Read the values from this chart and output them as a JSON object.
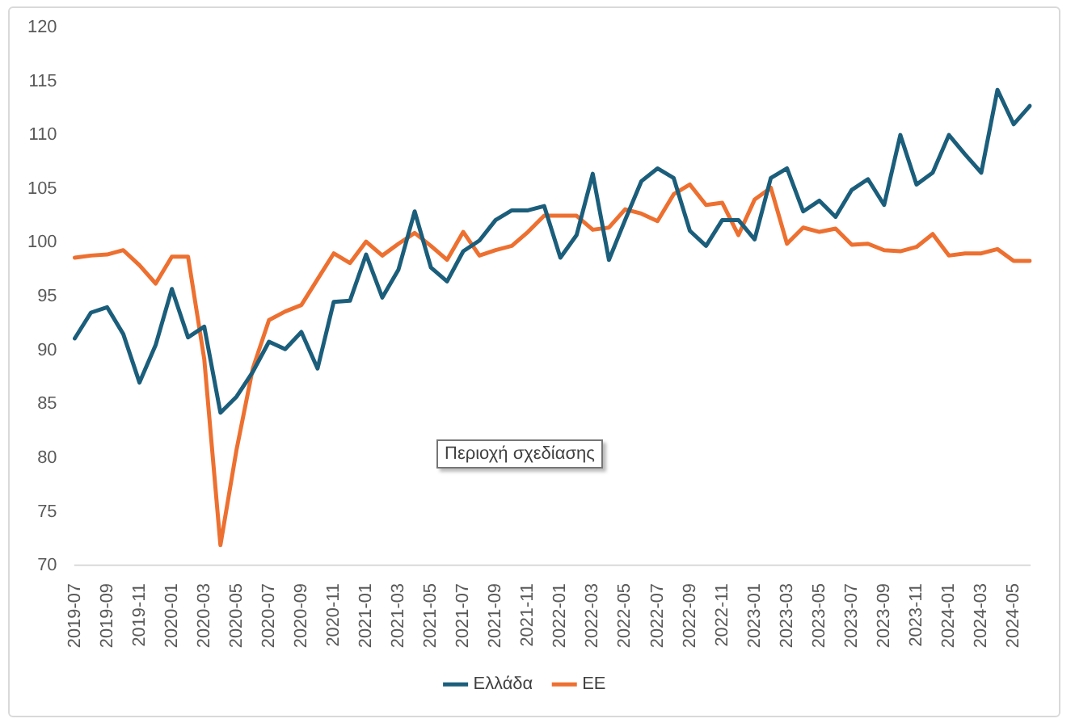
{
  "chart_data": {
    "type": "line",
    "categories": [
      "2019-07",
      null,
      "2019-09",
      null,
      "2019-11",
      null,
      "2020-01",
      null,
      "2020-03",
      null,
      "2020-05",
      null,
      "2020-07",
      null,
      "2020-09",
      null,
      "2020-11",
      null,
      "2021-01",
      null,
      "2021-03",
      null,
      "2021-05",
      null,
      "2021-07",
      null,
      "2021-09",
      null,
      "2021-11",
      null,
      "2022-01",
      null,
      "2022-03",
      null,
      "2022-05",
      null,
      "2022-07",
      null,
      "2022-09",
      null,
      "2022-11",
      null,
      "2023-01",
      null,
      "2023-03",
      null,
      "2023-05",
      null,
      "2023-07",
      null,
      "2023-09",
      null,
      "2023-11",
      null,
      "2024-01",
      null,
      "2024-03",
      null,
      "2024-05",
      null
    ],
    "series": [
      {
        "name": "Ελλάδα",
        "color": "#1b5e7b",
        "values": [
          91.1,
          93.5,
          94.0,
          91.5,
          87.0,
          90.5,
          95.7,
          91.2,
          92.2,
          84.2,
          85.7,
          88.0,
          90.8,
          90.1,
          91.7,
          88.3,
          94.5,
          94.6,
          98.9,
          94.9,
          97.5,
          102.9,
          97.7,
          96.4,
          99.2,
          100.2,
          102.1,
          103.0,
          103.0,
          103.4,
          98.6,
          100.7,
          106.4,
          98.4,
          102.1,
          105.7,
          106.9,
          106.0,
          101.1,
          99.7,
          102.1,
          102.1,
          100.3,
          106.0,
          106.9,
          102.9,
          103.9,
          102.4,
          104.9,
          105.9,
          103.5,
          110.0,
          105.4,
          106.5,
          110.0,
          108.2,
          106.5,
          114.2,
          111.0,
          112.7
        ]
      },
      {
        "name": "ΕΕ",
        "color": "#ed7030",
        "values": [
          98.6,
          98.8,
          98.9,
          99.3,
          97.9,
          96.2,
          98.7,
          98.7,
          89.2,
          71.9,
          80.8,
          88.3,
          92.8,
          93.6,
          94.2,
          96.6,
          99.0,
          98.1,
          100.1,
          98.8,
          99.9,
          100.9,
          99.7,
          98.4,
          101.0,
          98.8,
          99.3,
          99.7,
          101.0,
          102.5,
          102.5,
          102.5,
          101.2,
          101.4,
          103.1,
          102.7,
          102.0,
          104.5,
          105.4,
          103.5,
          103.7,
          100.7,
          104.0,
          105.1,
          99.9,
          101.4,
          101.0,
          101.3,
          99.8,
          99.9,
          99.3,
          99.2,
          99.6,
          100.8,
          98.8,
          99.0,
          99.0,
          99.4,
          98.3,
          98.3
        ]
      }
    ],
    "ylim": [
      70,
      120
    ],
    "yticks": [
      70,
      75,
      80,
      85,
      90,
      95,
      100,
      105,
      110,
      115,
      120
    ],
    "grid": false,
    "legend": "bottom",
    "marker": "none",
    "line_style": "solid",
    "annotations": [
      "Περιοχή σχεδίασης"
    ]
  }
}
